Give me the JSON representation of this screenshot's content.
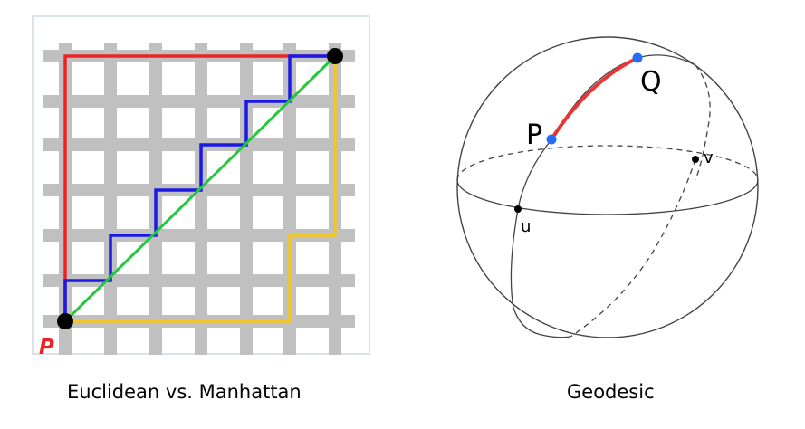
{
  "left": {
    "start_label": "P",
    "caption": "Euclidean vs. Manhattan",
    "colors": {
      "grid": "#c0c0c0",
      "frame": "#cfd8e3",
      "red_path": "#ee2222",
      "blue_path": "#1a1ae6",
      "yellow_path": "#f2c623",
      "green_path": "#22c93a",
      "start_label": "#ee2222"
    }
  },
  "right": {
    "caption": "Geodesic",
    "point_labels": {
      "p": "P",
      "q": "Q",
      "u": "u",
      "v": "v"
    },
    "colors": {
      "sphere": "#444444",
      "geodesic": "#ee3333",
      "endpoint": "#2a6df4"
    }
  }
}
